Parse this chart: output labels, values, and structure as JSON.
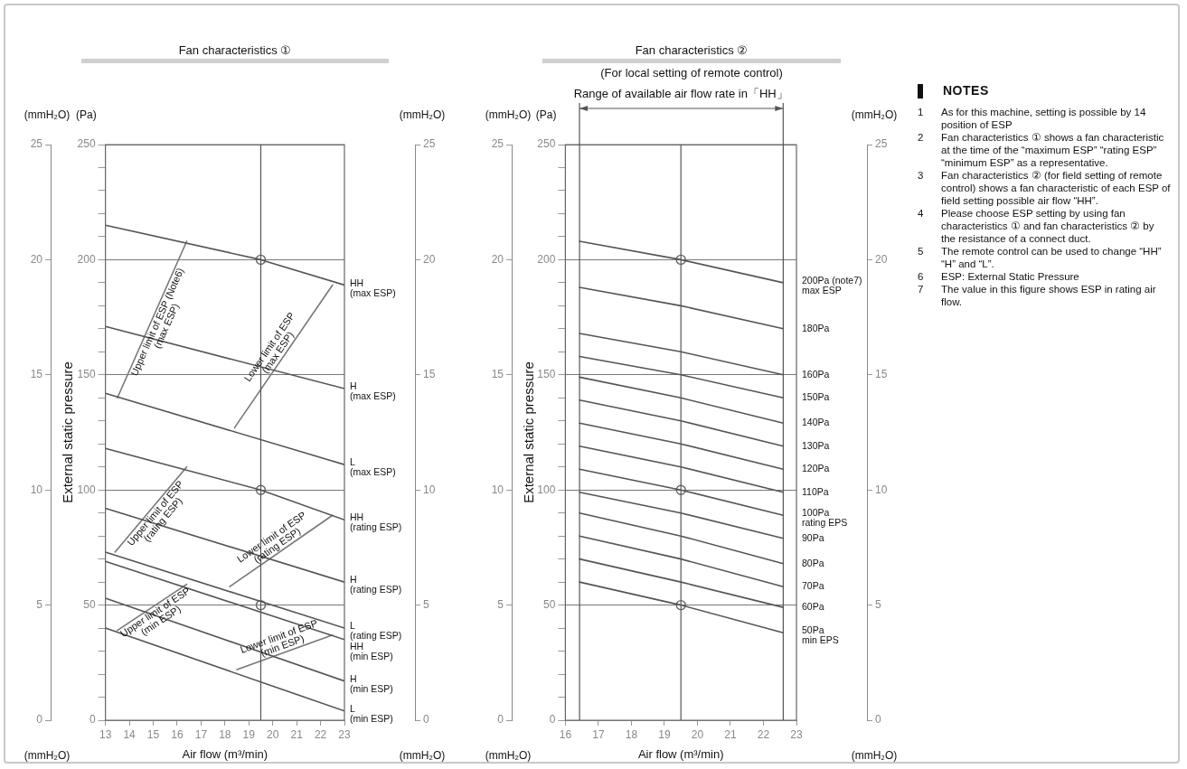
{
  "chart_data": [
    {
      "type": "line",
      "title": "Fan characteristics ①",
      "xlabel": "Air flow (m³/min)",
      "ylabel": "External static pressure",
      "y2label": "(mmH₂O)",
      "y3label": "(mmH₂O)",
      "xlim": [
        13,
        23
      ],
      "xticks": [
        13,
        14,
        15,
        16,
        17,
        18,
        19,
        20,
        21,
        22,
        23
      ],
      "ylim": [
        0,
        250
      ],
      "yticks": [
        0,
        {
          "value": 10,
          "label": null
        },
        {
          "value": 20,
          "label": null
        },
        {
          "value": 30,
          "label": null
        },
        {
          "value": 40,
          "label": null
        },
        50,
        {
          "value": 60,
          "label": null
        },
        {
          "value": 70,
          "label": null
        },
        {
          "value": 80,
          "label": null
        },
        {
          "value": 90,
          "label": null
        },
        100,
        {
          "value": 110,
          "label": null
        },
        {
          "value": 120,
          "label": null
        },
        {
          "value": 130,
          "label": null
        },
        {
          "value": 140,
          "label": null
        },
        150,
        {
          "value": 160,
          "label": null
        },
        {
          "value": 170,
          "label": null
        },
        {
          "value": 180,
          "label": null
        },
        {
          "value": 190,
          "label": null
        },
        200,
        {
          "value": 210,
          "label": null
        },
        {
          "value": 220,
          "label": null
        },
        {
          "value": 230,
          "label": null
        },
        {
          "value": 240,
          "label": null
        },
        250
      ],
      "y2lim": [
        0,
        25
      ],
      "y2ticks": [
        0,
        5,
        10,
        15,
        20,
        25
      ],
      "y3lim": [
        0,
        25
      ],
      "y3ticks": [
        0,
        5,
        10,
        15,
        20,
        25
      ],
      "grid": "y",
      "legend": false,
      "marker": "none",
      "line_style": "solid",
      "ref_lines": [
        {
          "axis": "x",
          "value": 19.5
        }
      ],
      "annotations": [
        "(Pa)"
      ],
      "series": [
        {
          "name": "HH (max ESP)",
          "color": "#555555",
          "x": [
            13,
            19.5,
            23
          ],
          "values": [
            215,
            200,
            189
          ]
        },
        {
          "name": "H (max ESP)",
          "color": "#555555",
          "x": [
            13,
            23
          ],
          "values": [
            171,
            144
          ]
        },
        {
          "name": "L (max ESP)",
          "color": "#555555",
          "x": [
            13,
            23
          ],
          "values": [
            142,
            111
          ]
        },
        {
          "name": "HH (rating ESP)",
          "color": "#555555",
          "x": [
            13,
            19.5,
            23
          ],
          "values": [
            118,
            100,
            87
          ]
        },
        {
          "name": "H (rating ESP)",
          "color": "#555555",
          "x": [
            13,
            23
          ],
          "values": [
            92,
            60
          ]
        },
        {
          "name": "L (rating ESP)",
          "color": "#555555",
          "x": [
            13,
            23
          ],
          "values": [
            73,
            40
          ]
        },
        {
          "name": "HH (min ESP)",
          "color": "#555555",
          "x": [
            13,
            23
          ],
          "values": [
            69,
            35
          ]
        },
        {
          "name": "H (min ESP)",
          "color": "#555555",
          "x": [
            13,
            23
          ],
          "values": [
            53,
            17
          ]
        },
        {
          "name": "L (min ESP)",
          "color": "#555555",
          "x": [
            13,
            23
          ],
          "values": [
            40,
            4
          ]
        },
        {
          "name": "Upper limit of ESP (Note6)\n(max ESP)",
          "color": "#777777",
          "x": [
            13.5,
            16.4
          ],
          "values": [
            140,
            208
          ]
        },
        {
          "name": "Lower limit of ESP\n(max ESP)",
          "color": "#777777",
          "x": [
            18.4,
            22.5
          ],
          "values": [
            127,
            189
          ]
        },
        {
          "name": "Upper limit of ESP\n(rating ESP)",
          "color": "#777777",
          "x": [
            13.4,
            16.4
          ],
          "values": [
            73,
            110
          ]
        },
        {
          "name": "Lower limit of ESP\n(rating ESP)",
          "color": "#777777",
          "x": [
            18.2,
            22.5
          ],
          "values": [
            58,
            89
          ]
        },
        {
          "name": "Upper limit of ESP\n(min ESP)",
          "color": "#777777",
          "x": [
            13.5,
            16.4
          ],
          "values": [
            39,
            59
          ]
        },
        {
          "name": "Lower limit of ESP\n(min ESP)",
          "color": "#777777",
          "x": [
            18.5,
            22.5
          ],
          "values": [
            22,
            37
          ]
        },
        {
          "type": "scatter",
          "marker": "circle",
          "color": "#666666",
          "x": [
            19.5,
            19.5,
            19.5
          ],
          "values": [
            200,
            100,
            50
          ]
        }
      ]
    },
    {
      "type": "line",
      "title": "Fan characteristics ②",
      "subtitle": "(For local setting of remote control)",
      "xlabel": "Air flow (m³/min)",
      "ylabel": "External static pressure",
      "y2label": "(mmH₂O)",
      "y3label": "(mmH₂O)",
      "xlim": [
        16,
        23
      ],
      "xticks": [
        16,
        17,
        18,
        19,
        20,
        21,
        22,
        23
      ],
      "ylim": [
        0,
        250
      ],
      "yticks": [
        0,
        {
          "value": 10,
          "label": null
        },
        {
          "value": 20,
          "label": null
        },
        {
          "value": 30,
          "label": null
        },
        {
          "value": 40,
          "label": null
        },
        50,
        {
          "value": 60,
          "label": null
        },
        {
          "value": 70,
          "label": null
        },
        {
          "value": 80,
          "label": null
        },
        {
          "value": 90,
          "label": null
        },
        100,
        {
          "value": 110,
          "label": null
        },
        {
          "value": 120,
          "label": null
        },
        {
          "value": 130,
          "label": null
        },
        {
          "value": 140,
          "label": null
        },
        150,
        {
          "value": 160,
          "label": null
        },
        {
          "value": 170,
          "label": null
        },
        {
          "value": 180,
          "label": null
        },
        {
          "value": 190,
          "label": null
        },
        200,
        {
          "value": 210,
          "label": null
        },
        {
          "value": 220,
          "label": null
        },
        {
          "value": 230,
          "label": null
        },
        {
          "value": 240,
          "label": null
        },
        250
      ],
      "y2lim": [
        0,
        25
      ],
      "y2ticks": [
        0,
        5,
        10,
        15,
        20,
        25
      ],
      "y3lim": [
        0,
        25
      ],
      "y3ticks": [
        0,
        5,
        10,
        15,
        20,
        25
      ],
      "grid": "y",
      "legend": false,
      "marker": "none",
      "line_style": "solid",
      "ref_lines": [
        {
          "axis": "x",
          "value": 16.43
        },
        {
          "axis": "x",
          "value": 19.5
        },
        {
          "axis": "x",
          "value": 22.6
        }
      ],
      "annotations": [
        "(Pa)",
        "Range of available air flow rate in「HH」"
      ],
      "series": [
        {
          "name": "200Pa (note7)\nmax ESP",
          "color": "#555555",
          "x": [
            16.43,
            19.5,
            22.6
          ],
          "values": [
            208,
            200,
            190
          ]
        },
        {
          "name": "180Pa",
          "color": "#555555",
          "x": [
            16.43,
            19.5,
            22.6
          ],
          "values": [
            188,
            180,
            170
          ]
        },
        {
          "name": "160Pa",
          "color": "#555555",
          "x": [
            16.43,
            19.5,
            22.6
          ],
          "values": [
            168,
            160,
            150
          ]
        },
        {
          "name": "150Pa",
          "color": "#555555",
          "x": [
            16.43,
            19.5,
            22.6
          ],
          "values": [
            158,
            150,
            140
          ]
        },
        {
          "name": "140Pa",
          "color": "#555555",
          "x": [
            16.43,
            19.5,
            22.6
          ],
          "values": [
            149,
            140,
            129
          ]
        },
        {
          "name": "130Pa",
          "color": "#555555",
          "x": [
            16.43,
            19.5,
            22.6
          ],
          "values": [
            139,
            130,
            119
          ]
        },
        {
          "name": "120Pa",
          "color": "#555555",
          "x": [
            16.43,
            19.5,
            22.6
          ],
          "values": [
            129,
            120,
            109
          ]
        },
        {
          "name": "110Pa",
          "color": "#555555",
          "x": [
            16.43,
            19.5,
            22.6
          ],
          "values": [
            119,
            110,
            99
          ]
        },
        {
          "name": "100Pa\nrating EPS",
          "color": "#555555",
          "x": [
            16.43,
            19.5,
            22.6
          ],
          "values": [
            109,
            100,
            89
          ]
        },
        {
          "name": "90Pa",
          "color": "#555555",
          "x": [
            16.43,
            19.5,
            22.6
          ],
          "values": [
            99,
            90,
            79
          ]
        },
        {
          "name": "80Pa",
          "color": "#555555",
          "x": [
            16.43,
            19.5,
            22.6
          ],
          "values": [
            90,
            80,
            68
          ]
        },
        {
          "name": "70Pa",
          "color": "#555555",
          "x": [
            16.43,
            19.5,
            22.6
          ],
          "values": [
            80,
            70,
            58
          ]
        },
        {
          "name": "60Pa",
          "color": "#555555",
          "x": [
            16.43,
            19.5,
            22.6
          ],
          "values": [
            70,
            60,
            49
          ]
        },
        {
          "name": "50Pa\nmin EPS",
          "color": "#555555",
          "x": [
            16.43,
            19.5,
            22.6
          ],
          "values": [
            60,
            50,
            38
          ]
        },
        {
          "type": "scatter",
          "marker": "circle",
          "color": "#666666",
          "x": [
            19.5,
            19.5,
            19.5
          ],
          "values": [
            200,
            100,
            50
          ]
        }
      ]
    },
    {
      "type": "other",
      "title": "NOTES",
      "annotations": [
        "1 As for this machine, setting is possible by 14 position of ESP",
        "2 Fan characteristics ① shows a fan characteristic at the time of the “maximum ESP” “rating ESP” “minimum ESP” as a representative.",
        "3 Fan characteristics ② (for field setting of remote control) shows a fan characteristic of each ESP of field setting possible air flow “HH”.",
        "4 Please choose ESP setting by using fan characteristics ① and fan characteristics ② by the resistance of a connect duct.",
        "5 The remote control can be used  to change  “HH” “H” and “L”.",
        "6 ESP: External Static Pressure",
        "7 The value in this figure shows ESP in rating air flow."
      ]
    }
  ]
}
